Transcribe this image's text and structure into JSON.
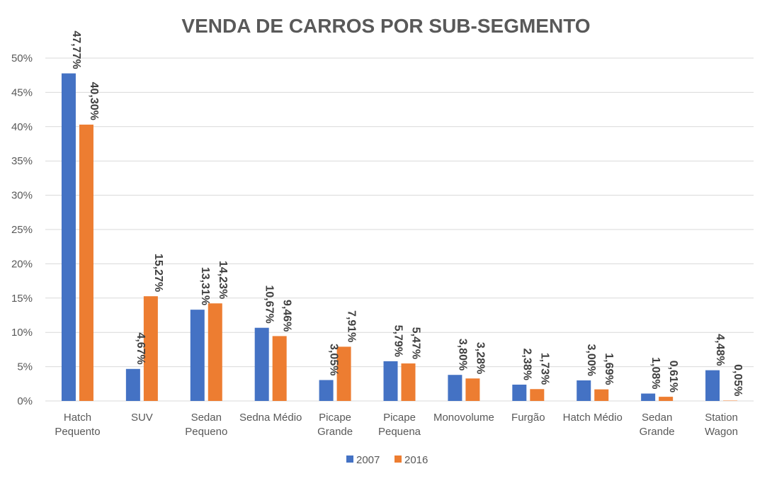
{
  "chart_data": {
    "type": "bar",
    "title": "VENDA DE CARROS POR SUB-SEGMENTO",
    "xlabel": "",
    "ylabel": "",
    "ylim": [
      0,
      50
    ],
    "y_ticks": [
      "0%",
      "5%",
      "10%",
      "15%",
      "20%",
      "25%",
      "30%",
      "35%",
      "40%",
      "45%",
      "50%"
    ],
    "grid": true,
    "legend_position": "bottom",
    "categories": [
      [
        "Hatch",
        "Pequento"
      ],
      [
        "SUV"
      ],
      [
        "Sedan",
        "Pequeno"
      ],
      [
        "Sedna Médio"
      ],
      [
        "Picape",
        "Grande"
      ],
      [
        "Picape",
        "Pequena"
      ],
      [
        "Monovolume"
      ],
      [
        "Furgão"
      ],
      [
        "Hatch Médio"
      ],
      [
        "Sedan",
        "Grande"
      ],
      [
        "Station",
        "Wagon"
      ]
    ],
    "series": [
      {
        "name": "2007",
        "color": "#4472c4",
        "values": [
          47.77,
          4.67,
          13.31,
          10.67,
          3.05,
          5.79,
          3.8,
          2.38,
          3.0,
          1.08,
          4.48
        ],
        "labels": [
          "47,77%",
          "4,67%",
          "13,31%",
          "10,67%",
          "3,05%",
          "5,79%",
          "3,80%",
          "2,38%",
          "3,00%",
          "1,08%",
          "4,48%"
        ]
      },
      {
        "name": "2016",
        "color": "#ed7d31",
        "values": [
          40.3,
          15.27,
          14.23,
          9.46,
          7.91,
          5.47,
          3.28,
          1.73,
          1.69,
          0.61,
          0.05
        ],
        "labels": [
          "40,30%",
          "15,27%",
          "14,23%",
          "9,46%",
          "7,91%",
          "5,47%",
          "3,28%",
          "1,73%",
          "1,69%",
          "0,61%",
          "0,05%"
        ]
      }
    ]
  }
}
